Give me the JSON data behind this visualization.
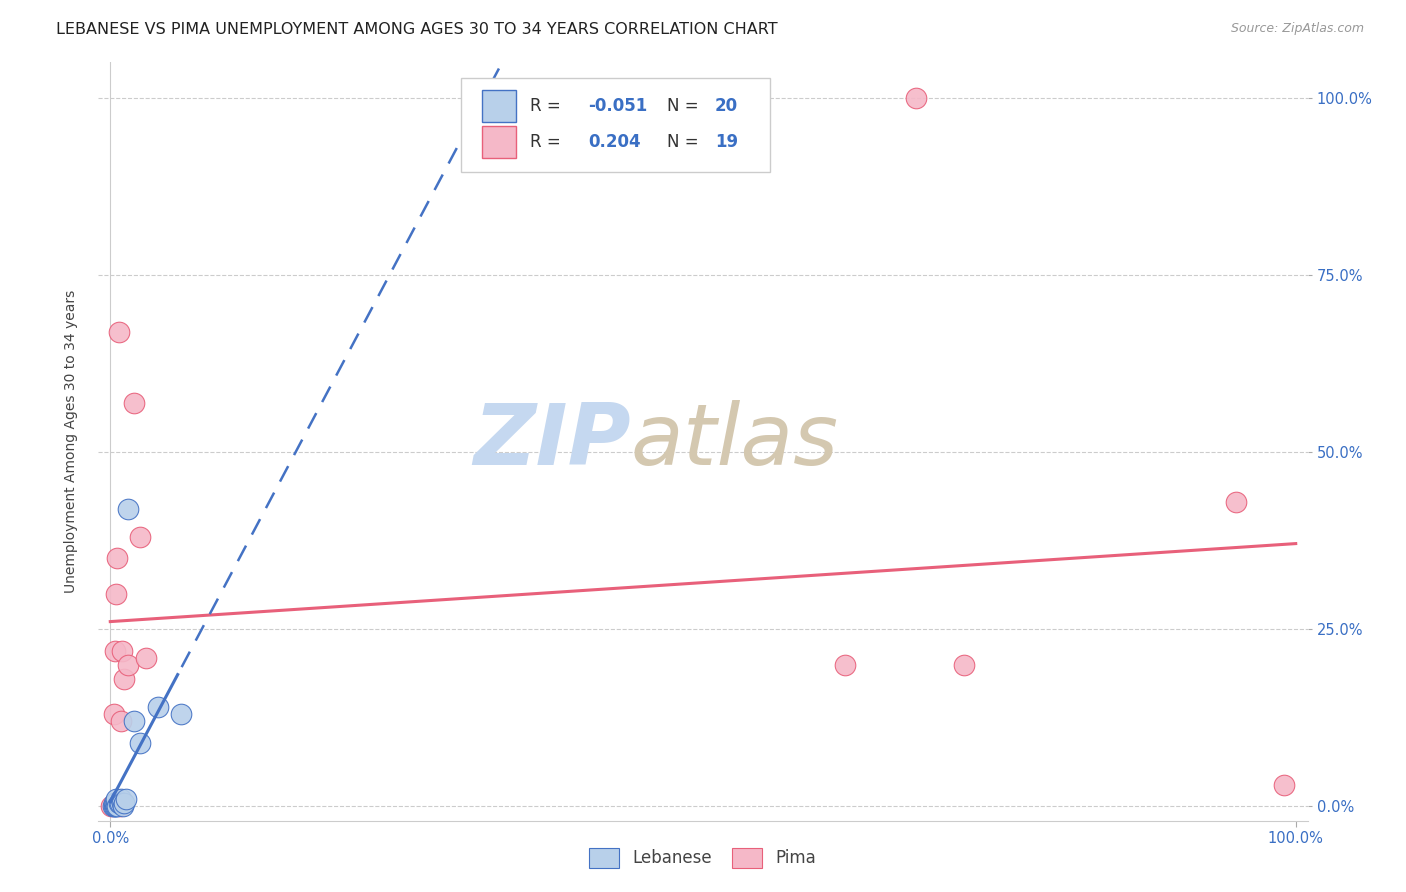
{
  "title": "LEBANESE VS PIMA UNEMPLOYMENT AMONG AGES 30 TO 34 YEARS CORRELATION CHART",
  "source": "Source: ZipAtlas.com",
  "ylabel": "Unemployment Among Ages 30 to 34 years",
  "ytick_labels": [
    "0.0%",
    "25.0%",
    "50.0%",
    "75.0%",
    "100.0%"
  ],
  "ytick_values": [
    0.0,
    0.25,
    0.5,
    0.75,
    1.0
  ],
  "xtick_labels": [
    "0.0%",
    "100.0%"
  ],
  "xtick_values": [
    0.0,
    1.0
  ],
  "xlim": [
    -0.01,
    1.01
  ],
  "ylim": [
    -0.02,
    1.05
  ],
  "lebanese_x": [
    0.002,
    0.003,
    0.003,
    0.004,
    0.004,
    0.005,
    0.005,
    0.006,
    0.007,
    0.008,
    0.009,
    0.01,
    0.011,
    0.012,
    0.013,
    0.015,
    0.02,
    0.025,
    0.04,
    0.06
  ],
  "lebanese_y": [
    0.0,
    0.0,
    0.005,
    0.0,
    0.005,
    0.0,
    0.01,
    0.0,
    0.005,
    0.005,
    0.01,
    0.005,
    0.0,
    0.005,
    0.01,
    0.42,
    0.12,
    0.09,
    0.14,
    0.13
  ],
  "pima_x": [
    0.001,
    0.003,
    0.004,
    0.005,
    0.006,
    0.007,
    0.008,
    0.009,
    0.01,
    0.012,
    0.015,
    0.02,
    0.025,
    0.03,
    0.62,
    0.68,
    0.72,
    0.95,
    0.99
  ],
  "pima_y": [
    0.0,
    0.13,
    0.22,
    0.3,
    0.35,
    0.67,
    0.0,
    0.12,
    0.22,
    0.18,
    0.2,
    0.57,
    0.38,
    0.21,
    0.2,
    1.0,
    0.2,
    0.43,
    0.03
  ],
  "lebanese_scatter_color": "#b8d0ea",
  "pima_scatter_color": "#f5b8c8",
  "trendline_lebanese_color": "#4472c4",
  "trendline_pima_color": "#e8607a",
  "background_color": "#ffffff",
  "watermark_zip_color": "#c5d8f0",
  "watermark_atlas_color": "#d4c8b0",
  "title_fontsize": 11.5,
  "axis_label_fontsize": 10,
  "tick_fontsize": 10.5,
  "legend_fontsize": 12
}
